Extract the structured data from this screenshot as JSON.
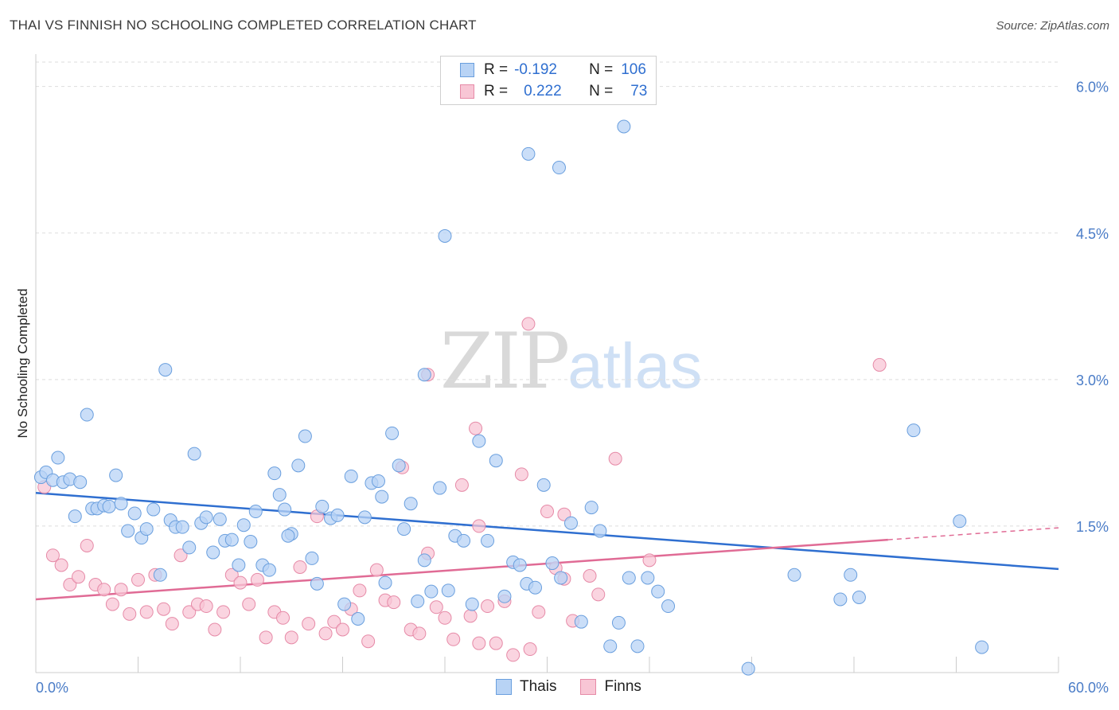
{
  "title": "THAI VS FINNISH NO SCHOOLING COMPLETED CORRELATION CHART",
  "source": "Source: ZipAtlas.com",
  "watermark": {
    "zip": "ZIP",
    "atlas": "atlas"
  },
  "legend": {
    "r_label": "R =",
    "n_label": "N =",
    "rows": [
      {
        "name": "Thais",
        "r": "-0.192",
        "n": "106"
      },
      {
        "name": "Finns",
        "r": "0.222",
        "n": "73"
      }
    ]
  },
  "colors": {
    "thais_fill": "#b8d3f5",
    "thais_stroke": "#6a9fde",
    "thais_line": "#2f6fd0",
    "finns_fill": "#f8c6d5",
    "finns_stroke": "#e68aa7",
    "finns_line": "#e06b95",
    "grid": "#dddddd",
    "tick_text": "#4a7cc7"
  },
  "chart_data": {
    "type": "scatter",
    "title": "THAI VS FINNISH NO SCHOOLING COMPLETED CORRELATION CHART",
    "xlabel": "",
    "ylabel": "No Schooling Completed",
    "xlim": [
      0,
      60
    ],
    "ylim": [
      0,
      6.25
    ],
    "x_tick_labels": [
      "0.0%",
      "60.0%"
    ],
    "y_ticks": [
      1.5,
      3.0,
      4.5,
      6.0
    ],
    "y_tick_labels": [
      "1.5%",
      "3.0%",
      "4.5%",
      "6.0%"
    ],
    "grid": true,
    "legend_position": "top-center",
    "series": [
      {
        "name": "Thais",
        "trend": {
          "x": [
            0,
            60
          ],
          "y": [
            1.84,
            1.06
          ]
        },
        "points": [
          [
            0.3,
            2.0
          ],
          [
            0.6,
            2.05
          ],
          [
            1.0,
            1.97
          ],
          [
            1.3,
            2.2
          ],
          [
            1.6,
            1.95
          ],
          [
            2.0,
            1.98
          ],
          [
            2.3,
            1.6
          ],
          [
            2.6,
            1.95
          ],
          [
            3.0,
            2.64
          ],
          [
            3.3,
            1.68
          ],
          [
            3.6,
            1.68
          ],
          [
            4.0,
            1.71
          ],
          [
            4.3,
            1.7
          ],
          [
            4.7,
            2.02
          ],
          [
            5.0,
            1.73
          ],
          [
            5.4,
            1.45
          ],
          [
            5.8,
            1.63
          ],
          [
            6.2,
            1.38
          ],
          [
            6.5,
            1.47
          ],
          [
            6.9,
            1.67
          ],
          [
            7.3,
            1.0
          ],
          [
            7.6,
            3.1
          ],
          [
            7.9,
            1.56
          ],
          [
            8.2,
            1.49
          ],
          [
            8.6,
            1.49
          ],
          [
            9.0,
            1.28
          ],
          [
            9.3,
            2.24
          ],
          [
            9.7,
            1.53
          ],
          [
            10.0,
            1.59
          ],
          [
            10.4,
            1.23
          ],
          [
            10.8,
            1.57
          ],
          [
            11.1,
            1.35
          ],
          [
            11.5,
            1.36
          ],
          [
            11.9,
            1.1
          ],
          [
            12.2,
            1.51
          ],
          [
            12.6,
            1.34
          ],
          [
            12.9,
            1.65
          ],
          [
            13.3,
            1.1
          ],
          [
            13.7,
            1.05
          ],
          [
            14.0,
            2.04
          ],
          [
            14.3,
            1.82
          ],
          [
            14.6,
            1.67
          ],
          [
            15.0,
            1.42
          ],
          [
            15.4,
            2.12
          ],
          [
            15.8,
            2.42
          ],
          [
            16.2,
            1.17
          ],
          [
            16.5,
            0.91
          ],
          [
            16.8,
            1.7
          ],
          [
            17.3,
            1.58
          ],
          [
            17.7,
            1.61
          ],
          [
            18.1,
            0.7
          ],
          [
            18.5,
            2.01
          ],
          [
            18.9,
            0.55
          ],
          [
            19.3,
            1.59
          ],
          [
            19.7,
            1.94
          ],
          [
            20.1,
            1.96
          ],
          [
            20.5,
            0.92
          ],
          [
            20.9,
            2.45
          ],
          [
            21.3,
            2.12
          ],
          [
            21.6,
            1.47
          ],
          [
            22.0,
            1.73
          ],
          [
            22.4,
            0.73
          ],
          [
            22.8,
            1.15
          ],
          [
            23.2,
            0.83
          ],
          [
            23.7,
            1.89
          ],
          [
            24.2,
            0.84
          ],
          [
            24.6,
            1.4
          ],
          [
            25.1,
            1.35
          ],
          [
            25.6,
            0.7
          ],
          [
            26.0,
            2.37
          ],
          [
            26.5,
            1.35
          ],
          [
            27.0,
            2.17
          ],
          [
            27.5,
            0.78
          ],
          [
            28.0,
            1.13
          ],
          [
            28.4,
            1.1
          ],
          [
            28.8,
            0.91
          ],
          [
            29.3,
            0.87
          ],
          [
            29.8,
            1.92
          ],
          [
            30.3,
            1.12
          ],
          [
            30.8,
            0.97
          ],
          [
            31.4,
            1.53
          ],
          [
            32.0,
            0.52
          ],
          [
            32.6,
            1.69
          ],
          [
            33.1,
            1.45
          ],
          [
            33.7,
            0.27
          ],
          [
            34.2,
            0.51
          ],
          [
            34.8,
            0.97
          ],
          [
            35.3,
            0.27
          ],
          [
            35.9,
            0.97
          ],
          [
            36.5,
            0.83
          ],
          [
            37.1,
            0.68
          ],
          [
            41.8,
            0.04
          ],
          [
            44.5,
            1.0
          ],
          [
            47.2,
            0.75
          ],
          [
            47.8,
            1.0
          ],
          [
            48.3,
            0.77
          ],
          [
            51.5,
            2.48
          ],
          [
            54.2,
            1.55
          ],
          [
            55.5,
            0.26
          ],
          [
            24.0,
            4.47
          ],
          [
            28.9,
            5.31
          ],
          [
            30.7,
            5.17
          ],
          [
            34.5,
            5.59
          ],
          [
            22.8,
            3.05
          ],
          [
            14.8,
            1.4
          ],
          [
            20.3,
            1.8
          ]
        ]
      },
      {
        "name": "Finns",
        "trend": {
          "x": [
            0,
            50
          ],
          "y": [
            0.75,
            1.36
          ]
        },
        "points": [
          [
            0.5,
            1.9
          ],
          [
            1.0,
            1.2
          ],
          [
            1.5,
            1.1
          ],
          [
            2.0,
            0.9
          ],
          [
            2.5,
            0.98
          ],
          [
            3.0,
            1.3
          ],
          [
            3.5,
            0.9
          ],
          [
            4.0,
            0.85
          ],
          [
            4.5,
            0.7
          ],
          [
            5.0,
            0.85
          ],
          [
            5.5,
            0.6
          ],
          [
            6.0,
            0.95
          ],
          [
            6.5,
            0.62
          ],
          [
            7.0,
            1.0
          ],
          [
            7.5,
            0.65
          ],
          [
            8.0,
            0.5
          ],
          [
            8.5,
            1.2
          ],
          [
            9.0,
            0.62
          ],
          [
            9.5,
            0.7
          ],
          [
            10.0,
            0.68
          ],
          [
            10.5,
            0.44
          ],
          [
            11.0,
            0.62
          ],
          [
            11.5,
            1.0
          ],
          [
            12.0,
            0.92
          ],
          [
            12.5,
            0.7
          ],
          [
            13.0,
            0.95
          ],
          [
            13.5,
            0.36
          ],
          [
            14.0,
            0.62
          ],
          [
            14.5,
            0.56
          ],
          [
            15.0,
            0.36
          ],
          [
            15.5,
            1.08
          ],
          [
            16.0,
            0.5
          ],
          [
            16.5,
            1.6
          ],
          [
            17.0,
            0.4
          ],
          [
            17.5,
            0.52
          ],
          [
            18.0,
            0.44
          ],
          [
            18.5,
            0.65
          ],
          [
            19.0,
            0.84
          ],
          [
            19.5,
            0.32
          ],
          [
            20.0,
            1.05
          ],
          [
            20.5,
            0.74
          ],
          [
            21.0,
            0.72
          ],
          [
            21.5,
            2.1
          ],
          [
            22.0,
            0.44
          ],
          [
            22.5,
            0.4
          ],
          [
            23.0,
            1.22
          ],
          [
            23.5,
            0.67
          ],
          [
            24.0,
            0.56
          ],
          [
            24.5,
            0.34
          ],
          [
            25.0,
            1.92
          ],
          [
            25.5,
            0.58
          ],
          [
            26.0,
            1.5
          ],
          [
            26.5,
            0.68
          ],
          [
            27.0,
            0.3
          ],
          [
            27.5,
            0.73
          ],
          [
            28.0,
            0.18
          ],
          [
            28.5,
            2.03
          ],
          [
            29.0,
            0.24
          ],
          [
            29.5,
            0.62
          ],
          [
            30.0,
            1.65
          ],
          [
            30.5,
            1.07
          ],
          [
            31.0,
            0.96
          ],
          [
            31.5,
            0.53
          ],
          [
            32.5,
            0.99
          ],
          [
            33.0,
            0.8
          ],
          [
            34.0,
            2.19
          ],
          [
            36.0,
            1.15
          ],
          [
            49.5,
            3.15
          ],
          [
            28.9,
            3.57
          ],
          [
            25.8,
            2.5
          ],
          [
            31.0,
            1.62
          ],
          [
            26.0,
            0.3
          ],
          [
            23.0,
            3.05
          ]
        ]
      }
    ]
  }
}
